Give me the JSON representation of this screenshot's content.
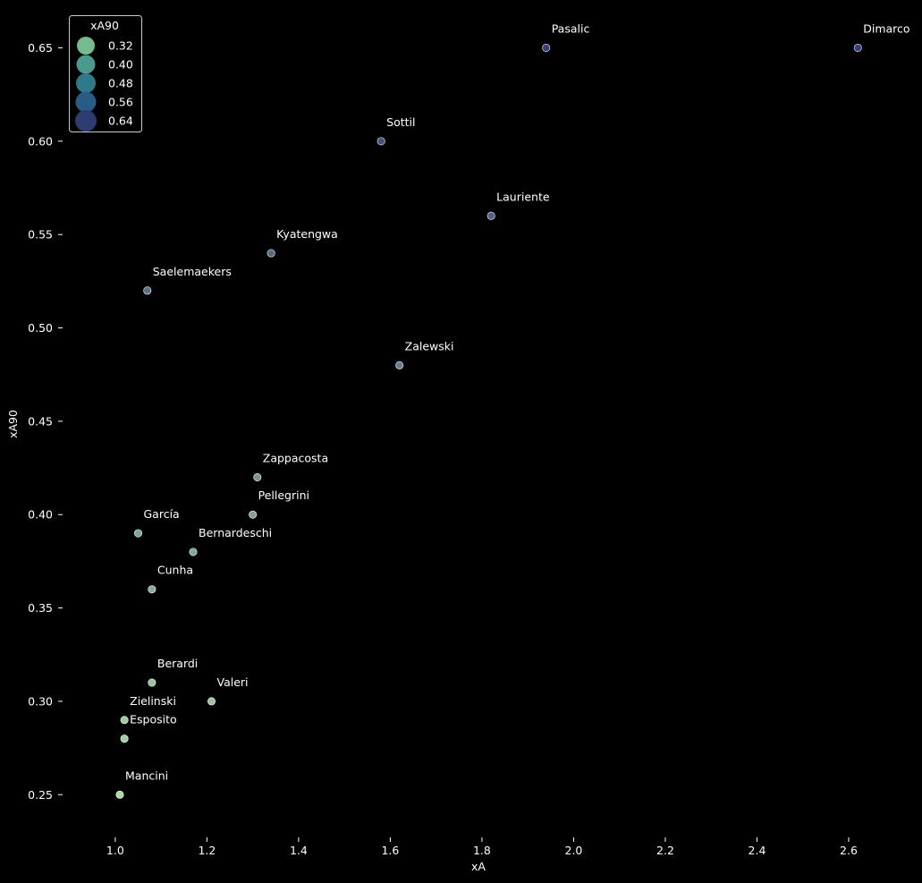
{
  "chart_data": {
    "type": "scatter",
    "title": "",
    "xlabel": "xA",
    "ylabel": "xA90",
    "xlim": [
      0.93,
      2.76
    ],
    "ylim": [
      0.23,
      0.667
    ],
    "x_ticks": [
      1.0,
      1.2,
      1.4,
      1.6,
      1.8,
      2.0,
      2.2,
      2.4,
      2.6
    ],
    "x_tick_labels": [
      "1.0",
      "1.2",
      "1.4",
      "1.6",
      "1.8",
      "2.0",
      "2.2",
      "2.4",
      "2.6"
    ],
    "y_ticks": [
      0.25,
      0.3,
      0.35,
      0.4,
      0.45,
      0.5,
      0.55,
      0.6,
      0.65
    ],
    "y_tick_labels": [
      "0.25",
      "0.30",
      "0.35",
      "0.40",
      "0.45",
      "0.50",
      "0.55",
      "0.60",
      "0.65"
    ],
    "grid": false,
    "background": "#000000",
    "hue": "xA90",
    "size": "xA90",
    "points": [
      {
        "name": "Pasalic",
        "x": 1.94,
        "y": 0.65
      },
      {
        "name": "Dimarco",
        "x": 2.62,
        "y": 0.65
      },
      {
        "name": "Sottil",
        "x": 1.58,
        "y": 0.6
      },
      {
        "name": "Lauriente",
        "x": 1.82,
        "y": 0.56
      },
      {
        "name": "Kyatengwa",
        "x": 1.34,
        "y": 0.54
      },
      {
        "name": "Saelemaekers",
        "x": 1.07,
        "y": 0.52
      },
      {
        "name": "Zalewski",
        "x": 1.62,
        "y": 0.48
      },
      {
        "name": "Zappacosta",
        "x": 1.31,
        "y": 0.42
      },
      {
        "name": "Pellegrini",
        "x": 1.3,
        "y": 0.4
      },
      {
        "name": "García",
        "x": 1.05,
        "y": 0.39
      },
      {
        "name": "Bernardeschi",
        "x": 1.17,
        "y": 0.38
      },
      {
        "name": "Cunha",
        "x": 1.08,
        "y": 0.36
      },
      {
        "name": "Berardi",
        "x": 1.08,
        "y": 0.31
      },
      {
        "name": "Valeri",
        "x": 1.21,
        "y": 0.3
      },
      {
        "name": "Zielinski",
        "x": 1.02,
        "y": 0.29
      },
      {
        "name": "Esposito",
        "x": 1.02,
        "y": 0.28
      },
      {
        "name": "Mancini",
        "x": 1.01,
        "y": 0.25
      }
    ],
    "legend": {
      "title": "xA90",
      "placement": "top-left",
      "entries": [
        {
          "label": "0.32",
          "value": 0.32,
          "color": "#72bc8f"
        },
        {
          "label": "0.40",
          "value": 0.4,
          "color": "#4a9a8e"
        },
        {
          "label": "0.48",
          "value": 0.48,
          "color": "#2f7a8a"
        },
        {
          "label": "0.56",
          "value": 0.56,
          "color": "#275d84"
        },
        {
          "label": "0.64",
          "value": 0.64,
          "color": "#2d3c71"
        }
      ]
    },
    "palette": {
      "low": "#a8dba0",
      "high": "#34407a"
    }
  }
}
